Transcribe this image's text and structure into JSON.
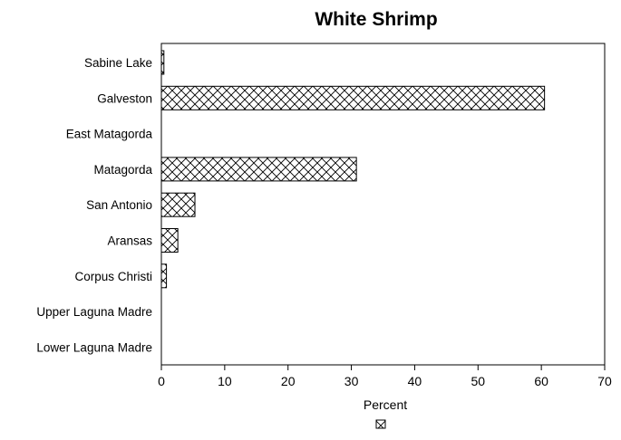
{
  "chart_data": {
    "type": "bar",
    "orientation": "horizontal",
    "title": "White Shrimp",
    "xlabel": "Percent",
    "ylabel": "",
    "xlim": [
      0,
      70
    ],
    "xticks": [
      0,
      10,
      20,
      30,
      40,
      50,
      60,
      70
    ],
    "categories": [
      "Sabine Lake",
      "Galveston",
      "East Matagorda",
      "Matagorda",
      "San Antonio",
      "Aransas",
      "Corpus Christi",
      "Upper Laguna Madre",
      "Lower Laguna Madre"
    ],
    "values": [
      0.4,
      60.5,
      0,
      30.8,
      5.3,
      2.6,
      0.8,
      0,
      0
    ],
    "grid": false,
    "legend": "bottom-center",
    "bar_fill": "crosshatch"
  }
}
